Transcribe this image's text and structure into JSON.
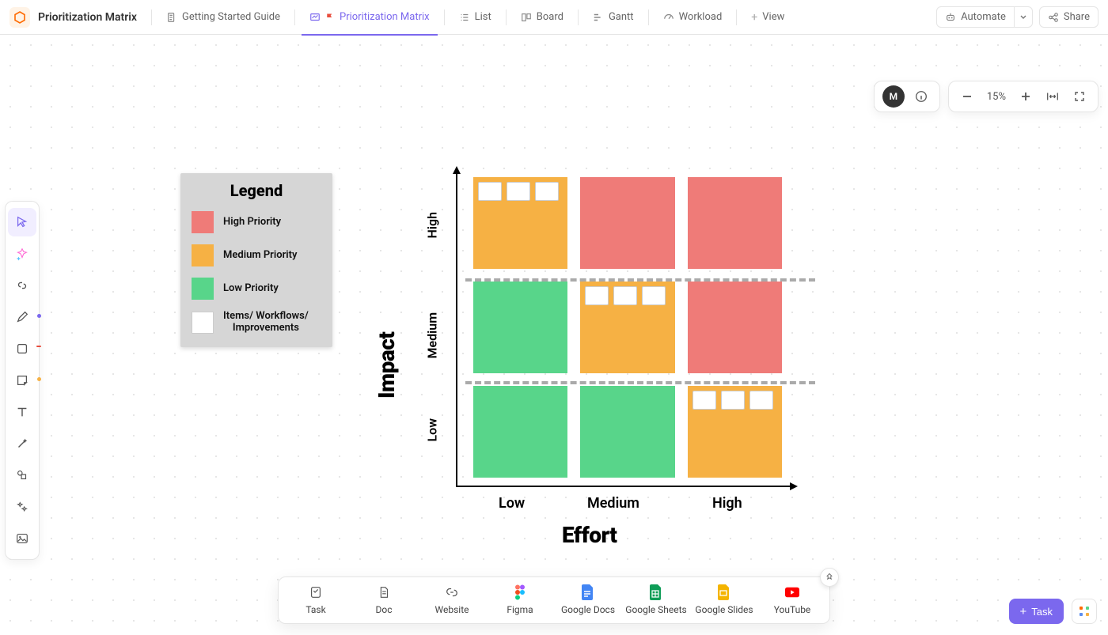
{
  "header": {
    "title": "Prioritization Matrix",
    "tabs": [
      {
        "label": "Getting Started Guide"
      },
      {
        "label": "Prioritization Matrix"
      },
      {
        "label": "List"
      },
      {
        "label": "Board"
      },
      {
        "label": "Gantt"
      },
      {
        "label": "Workload"
      }
    ],
    "add_view": "View",
    "automate": "Automate",
    "share": "Share"
  },
  "controls": {
    "avatar_initial": "M",
    "zoom": "15%"
  },
  "legend": {
    "title": "Legend",
    "items": [
      {
        "label": "High Priority",
        "color": "#ef7b78"
      },
      {
        "label": "Medium Priority",
        "color": "#f6b144"
      },
      {
        "label": "Low Priority",
        "color": "#58d58a"
      },
      {
        "label": "Items/ Workflows/\nImprovements",
        "color": "#ffffff"
      }
    ]
  },
  "matrix": {
    "x_axis_label": "Effort",
    "y_axis_label": "Impact",
    "x_ticks": [
      "Low",
      "Medium",
      "High"
    ],
    "y_ticks": [
      "Low",
      "Medium",
      "High"
    ],
    "colors": {
      "high": "#ef7b78",
      "medium": "#f6b144",
      "low": "#58d58a",
      "divider": "#aaaaaa",
      "axis": "#000000"
    },
    "cells": [
      {
        "row": "High",
        "col": "Low",
        "priority": "medium",
        "cards": 3
      },
      {
        "row": "High",
        "col": "Medium",
        "priority": "high",
        "cards": 0
      },
      {
        "row": "High",
        "col": "High",
        "priority": "high",
        "cards": 0
      },
      {
        "row": "Medium",
        "col": "Low",
        "priority": "low",
        "cards": 0
      },
      {
        "row": "Medium",
        "col": "Medium",
        "priority": "medium",
        "cards": 3
      },
      {
        "row": "Medium",
        "col": "High",
        "priority": "high",
        "cards": 0
      },
      {
        "row": "Low",
        "col": "Low",
        "priority": "low",
        "cards": 0
      },
      {
        "row": "Low",
        "col": "Medium",
        "priority": "low",
        "cards": 0
      },
      {
        "row": "Low",
        "col": "High",
        "priority": "medium",
        "cards": 3
      }
    ]
  },
  "dock": {
    "items": [
      {
        "label": "Task"
      },
      {
        "label": "Doc"
      },
      {
        "label": "Website"
      },
      {
        "label": "Figma"
      },
      {
        "label": "Google Docs"
      },
      {
        "label": "Google Sheets"
      },
      {
        "label": "Google Slides"
      },
      {
        "label": "YouTube"
      }
    ]
  },
  "footer": {
    "task_button": "Task"
  }
}
